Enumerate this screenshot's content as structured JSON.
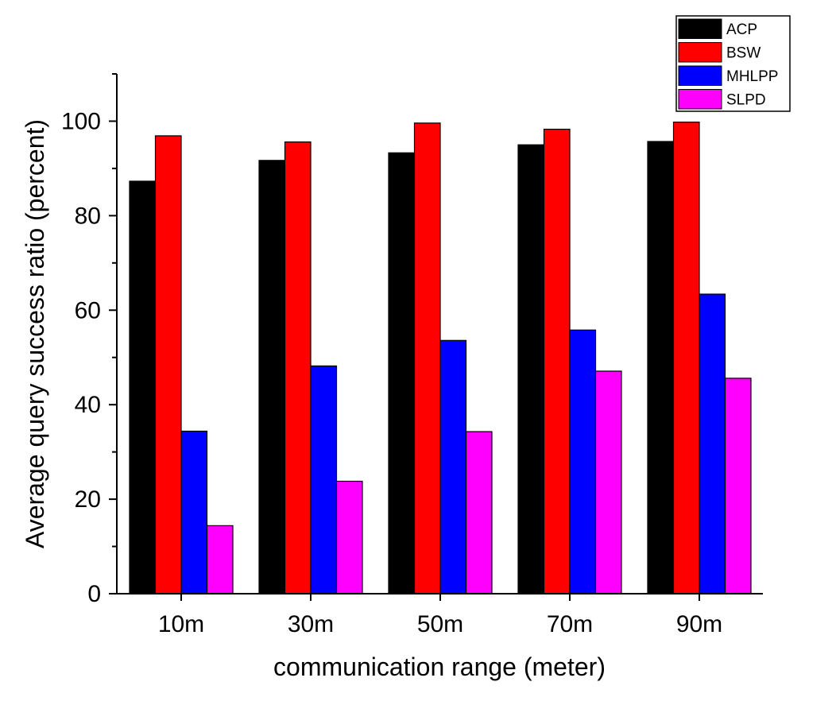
{
  "chart_data": {
    "type": "bar",
    "title": "",
    "xlabel": "communication range (meter)",
    "ylabel": "Average query success ratio (percent)",
    "ylim": [
      0,
      110
    ],
    "yticks": [
      0,
      20,
      40,
      60,
      80,
      100
    ],
    "grid": false,
    "legend_position": "top-right",
    "categories": [
      "10m",
      "30m",
      "50m",
      "70m",
      "90m"
    ],
    "series": [
      {
        "name": "ACP",
        "color": "#000000",
        "values": [
          87.3,
          91.7,
          93.3,
          95.0,
          95.7
        ]
      },
      {
        "name": "BSW",
        "color": "#ff0000",
        "values": [
          96.9,
          95.6,
          99.6,
          98.3,
          99.8
        ]
      },
      {
        "name": "MHLPP",
        "color": "#0000ff",
        "values": [
          34.4,
          48.2,
          53.6,
          55.8,
          63.4
        ]
      },
      {
        "name": "SLPD",
        "color": "#ff00ff",
        "values": [
          14.4,
          23.8,
          34.3,
          47.1,
          45.6
        ]
      }
    ]
  }
}
